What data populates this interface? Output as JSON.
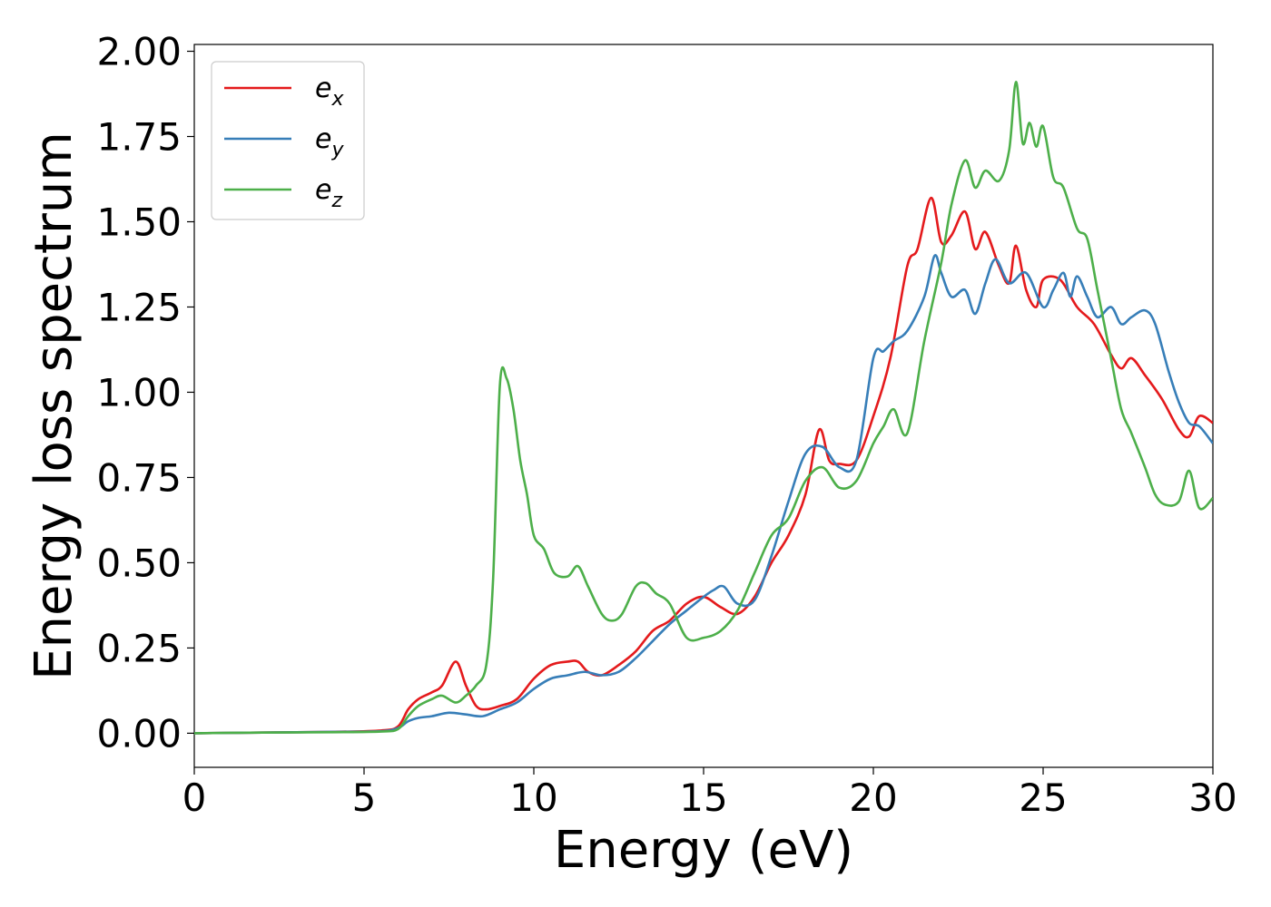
{
  "chart_data": {
    "type": "line",
    "xlabel": "Energy (eV)",
    "ylabel": "Energy loss spectrum",
    "xlim": [
      0,
      30
    ],
    "ylim": [
      -0.1,
      2.02
    ],
    "x_ticks": [
      0,
      5,
      10,
      15,
      20,
      25,
      30
    ],
    "x_tick_labels": [
      "0",
      "5",
      "10",
      "15",
      "20",
      "25",
      "30"
    ],
    "y_ticks": [
      0.0,
      0.25,
      0.5,
      0.75,
      1.0,
      1.25,
      1.5,
      1.75,
      2.0
    ],
    "y_tick_labels": [
      "0.00",
      "0.25",
      "0.50",
      "0.75",
      "1.00",
      "1.25",
      "1.50",
      "1.75",
      "2.00"
    ],
    "grid": false,
    "legend_position": "top-left",
    "series": [
      {
        "name": "e_x",
        "label_base": "e",
        "label_sub": "x",
        "color": "#e41a1c",
        "x": [
          0,
          2,
          4,
          5.5,
          6.0,
          6.3,
          6.6,
          7.0,
          7.3,
          7.7,
          8.0,
          8.3,
          8.6,
          9.0,
          9.5,
          10.0,
          10.5,
          11.0,
          11.3,
          11.6,
          12.0,
          12.5,
          13.0,
          13.5,
          14.0,
          14.5,
          15.0,
          15.5,
          16.0,
          16.5,
          17.0,
          17.5,
          18.0,
          18.4,
          18.7,
          19.0,
          19.5,
          20.0,
          20.5,
          21.0,
          21.3,
          21.7,
          22.0,
          22.3,
          22.7,
          23.0,
          23.3,
          23.7,
          24.0,
          24.2,
          24.5,
          24.8,
          25.0,
          25.5,
          26.0,
          26.5,
          27.0,
          27.3,
          27.6,
          28.0,
          28.5,
          29.0,
          29.3,
          29.6,
          30.0
        ],
        "values": [
          0.0,
          0.002,
          0.004,
          0.008,
          0.02,
          0.07,
          0.1,
          0.12,
          0.14,
          0.21,
          0.14,
          0.08,
          0.07,
          0.08,
          0.1,
          0.16,
          0.2,
          0.21,
          0.21,
          0.18,
          0.17,
          0.2,
          0.24,
          0.3,
          0.33,
          0.38,
          0.4,
          0.37,
          0.35,
          0.4,
          0.5,
          0.58,
          0.7,
          0.89,
          0.8,
          0.79,
          0.8,
          0.93,
          1.1,
          1.37,
          1.42,
          1.57,
          1.44,
          1.46,
          1.53,
          1.42,
          1.47,
          1.37,
          1.32,
          1.43,
          1.3,
          1.25,
          1.33,
          1.33,
          1.25,
          1.2,
          1.11,
          1.07,
          1.1,
          1.05,
          0.98,
          0.89,
          0.87,
          0.93,
          0.91
        ]
      },
      {
        "name": "e_y",
        "label_base": "e",
        "label_sub": "y",
        "color": "#377eb8",
        "x": [
          0,
          2,
          4,
          5.5,
          6.0,
          6.3,
          6.6,
          7.0,
          7.5,
          8.0,
          8.5,
          9.0,
          9.5,
          10.0,
          10.5,
          11.0,
          11.5,
          12.0,
          12.5,
          13.0,
          13.5,
          14.0,
          14.5,
          15.0,
          15.3,
          15.6,
          16.0,
          16.5,
          17.0,
          17.5,
          18.0,
          18.5,
          19.0,
          19.5,
          20.0,
          20.3,
          20.6,
          21.0,
          21.5,
          21.8,
          22.0,
          22.3,
          22.7,
          23.0,
          23.3,
          23.6,
          24.0,
          24.5,
          25.0,
          25.3,
          25.6,
          25.8,
          26.0,
          26.3,
          26.6,
          27.0,
          27.3,
          27.6,
          28.0,
          28.3,
          28.7,
          29.0,
          29.3,
          29.6,
          30.0
        ],
        "values": [
          0.0,
          0.002,
          0.004,
          0.006,
          0.015,
          0.035,
          0.045,
          0.05,
          0.06,
          0.055,
          0.05,
          0.07,
          0.09,
          0.13,
          0.16,
          0.17,
          0.18,
          0.17,
          0.18,
          0.22,
          0.27,
          0.32,
          0.36,
          0.4,
          0.42,
          0.43,
          0.38,
          0.39,
          0.52,
          0.68,
          0.82,
          0.84,
          0.78,
          0.8,
          1.1,
          1.12,
          1.15,
          1.18,
          1.28,
          1.4,
          1.35,
          1.28,
          1.3,
          1.23,
          1.32,
          1.39,
          1.32,
          1.35,
          1.25,
          1.3,
          1.35,
          1.28,
          1.34,
          1.28,
          1.22,
          1.25,
          1.2,
          1.22,
          1.24,
          1.2,
          1.06,
          0.97,
          0.91,
          0.9,
          0.85
        ]
      },
      {
        "name": "e_z",
        "label_base": "e",
        "label_sub": "z",
        "color": "#4daf4a",
        "x": [
          0,
          2,
          4,
          5.5,
          6.0,
          6.3,
          6.6,
          7.0,
          7.3,
          7.7,
          8.0,
          8.3,
          8.6,
          8.8,
          9.0,
          9.2,
          9.4,
          9.6,
          9.8,
          10.0,
          10.3,
          10.6,
          11.0,
          11.3,
          11.6,
          12.0,
          12.3,
          12.6,
          13.0,
          13.3,
          13.6,
          14.0,
          14.5,
          15.0,
          15.5,
          16.0,
          16.5,
          17.0,
          17.5,
          18.0,
          18.5,
          19.0,
          19.5,
          20.0,
          20.3,
          20.6,
          21.0,
          21.5,
          22.0,
          22.3,
          22.7,
          23.0,
          23.3,
          23.7,
          24.0,
          24.2,
          24.4,
          24.6,
          24.8,
          25.0,
          25.3,
          25.6,
          26.0,
          26.3,
          26.6,
          27.0,
          27.3,
          27.6,
          28.0,
          28.3,
          28.6,
          29.0,
          29.3,
          29.6,
          30.0
        ],
        "values": [
          0.0,
          0.002,
          0.003,
          0.005,
          0.012,
          0.05,
          0.08,
          0.1,
          0.11,
          0.09,
          0.11,
          0.14,
          0.2,
          0.45,
          1.02,
          1.04,
          0.95,
          0.8,
          0.7,
          0.58,
          0.54,
          0.47,
          0.46,
          0.49,
          0.43,
          0.35,
          0.33,
          0.35,
          0.43,
          0.44,
          0.41,
          0.38,
          0.28,
          0.28,
          0.3,
          0.36,
          0.47,
          0.58,
          0.63,
          0.74,
          0.78,
          0.72,
          0.74,
          0.85,
          0.9,
          0.95,
          0.88,
          1.15,
          1.38,
          1.55,
          1.68,
          1.6,
          1.65,
          1.62,
          1.71,
          1.91,
          1.73,
          1.79,
          1.72,
          1.78,
          1.63,
          1.6,
          1.48,
          1.45,
          1.3,
          1.1,
          0.95,
          0.88,
          0.78,
          0.7,
          0.67,
          0.68,
          0.77,
          0.66,
          0.69
        ]
      }
    ]
  }
}
